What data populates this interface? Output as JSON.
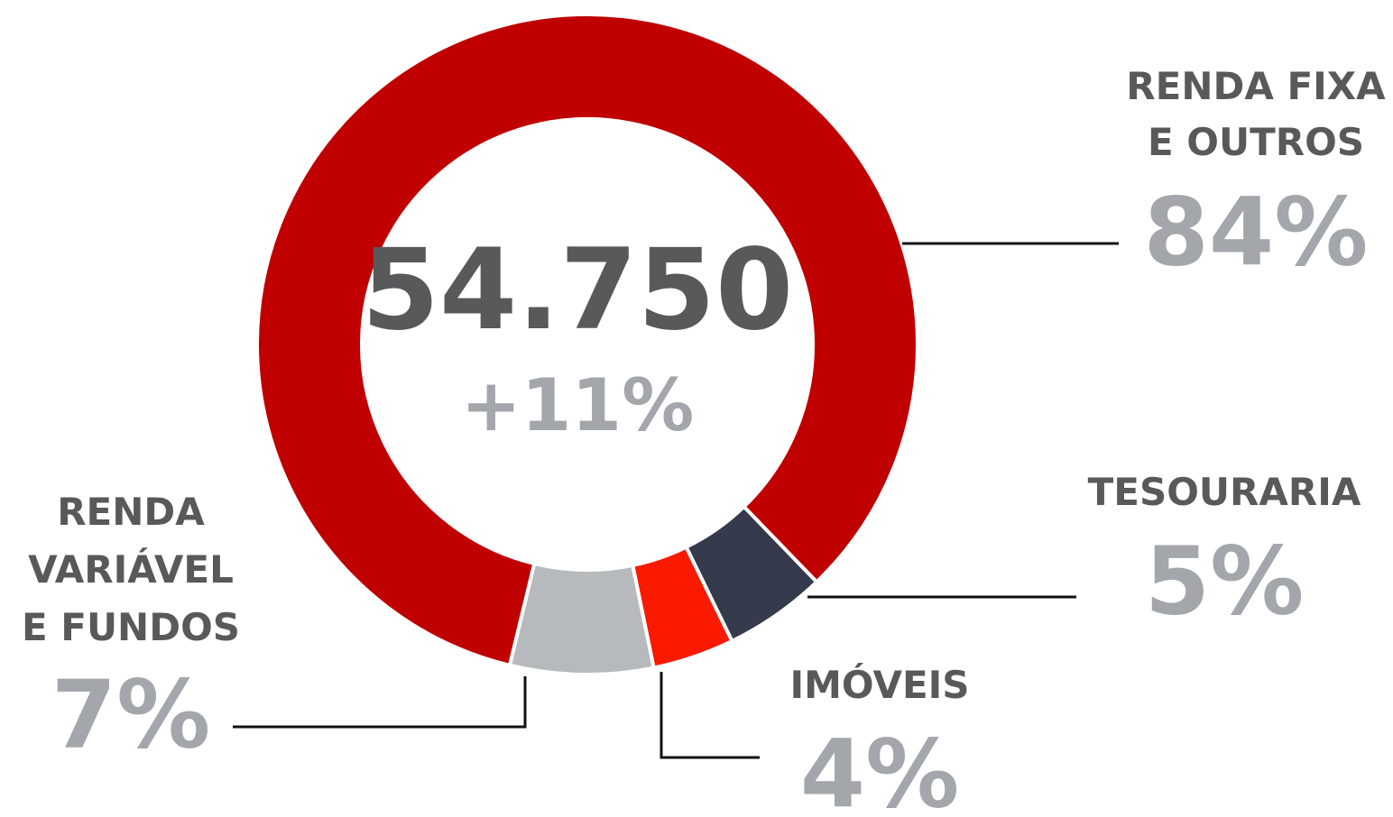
{
  "chart_data": {
    "type": "donut",
    "center_label": "54.750",
    "center_sublabel": "+11%",
    "categories": [
      [
        "TESOURARIA"
      ],
      [
        "IMÓVEIS"
      ],
      [
        "RENDA",
        "VARIÁVEL",
        "E FUNDOS"
      ],
      [
        "RENDA FIXA",
        "E OUTROS"
      ]
    ],
    "values": [
      5,
      4,
      7,
      84
    ],
    "value_labels": [
      "5%",
      "4%",
      "7%",
      "84%"
    ],
    "colors": [
      "#353a4d",
      "#f91a00",
      "#b7babd",
      "#c00000"
    ]
  }
}
